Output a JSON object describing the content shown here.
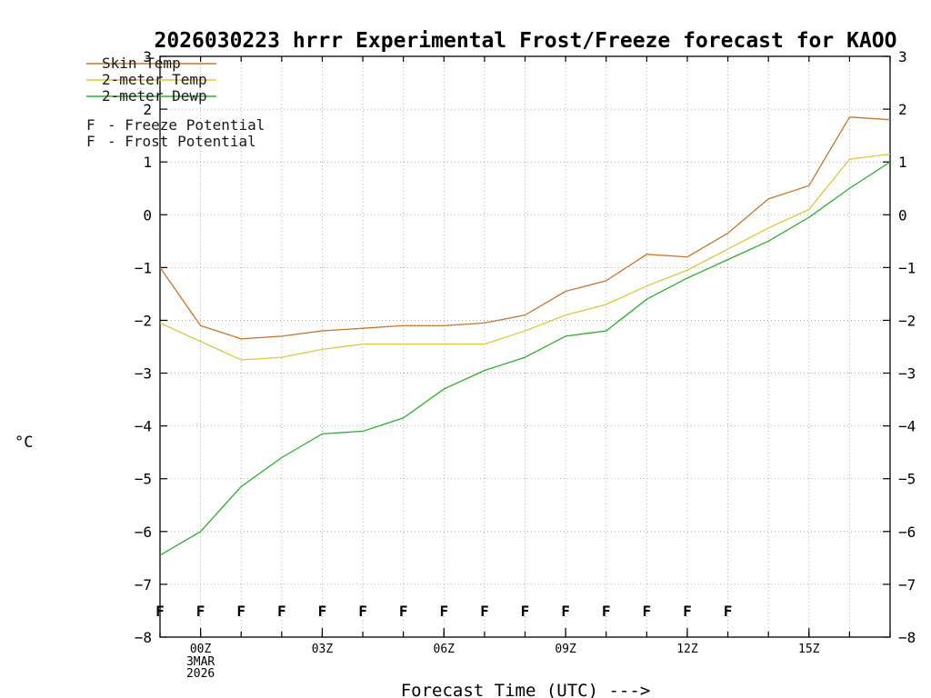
{
  "title": "2026030223 hrrr Experimental Frost/Freeze forecast for KAOO",
  "x_axis_label": "Forecast Time (UTC) --->",
  "y_axis_label": "°C",
  "legend": [
    {
      "id": "skin-temp",
      "label": "Skin Temp",
      "color": "#c8762d"
    },
    {
      "id": "2m-temp",
      "label": "2-meter Temp",
      "color": "#d8c83c"
    },
    {
      "id": "2m-dewp",
      "label": "2-meter Dewp",
      "color": "#2eb02e"
    }
  ],
  "potential_legend": [
    {
      "id": "freeze-potential",
      "marker": "F",
      "label": "- Freeze Potential",
      "color": "#d4009e"
    },
    {
      "id": "frost-potential",
      "marker": "F",
      "label": "- Frost Potential",
      "color": "#4444ff"
    }
  ],
  "chart_data": {
    "type": "line",
    "xlabel": "Forecast Time (UTC) --->",
    "ylabel": "°C",
    "xmin": -1,
    "xmax": 17,
    "ymin": -8,
    "ymax": 3,
    "grid": true,
    "x_hours": [
      -1,
      0,
      1,
      2,
      3,
      4,
      5,
      6,
      7,
      8,
      9,
      10,
      11,
      12,
      13,
      14,
      15,
      16,
      17
    ],
    "xticks": [
      {
        "hour": 0,
        "label": "00Z",
        "sub": [
          "3MAR",
          "2026"
        ]
      },
      {
        "hour": 3,
        "label": "03Z"
      },
      {
        "hour": 6,
        "label": "06Z"
      },
      {
        "hour": 9,
        "label": "09Z"
      },
      {
        "hour": 12,
        "label": "12Z"
      },
      {
        "hour": 15,
        "label": "15Z"
      }
    ],
    "yticks": [
      3,
      2,
      1,
      0,
      -1,
      -2,
      -3,
      -4,
      -5,
      -6,
      -7,
      -8
    ],
    "series": [
      {
        "id": "skin-temp",
        "name": "Skin Temp",
        "color": "#c8762d",
        "values": [
          -1.0,
          -2.1,
          -2.35,
          -2.3,
          -2.2,
          -2.15,
          -2.1,
          -2.1,
          -2.05,
          -1.9,
          -1.45,
          -1.25,
          -0.75,
          -0.8,
          -0.35,
          0.3,
          0.55,
          1.85,
          1.8
        ]
      },
      {
        "id": "2m-temp",
        "name": "2-meter Temp",
        "color": "#d8c83c",
        "values": [
          -2.05,
          -2.4,
          -2.75,
          -2.7,
          -2.55,
          -2.45,
          -2.45,
          -2.45,
          -2.45,
          -2.2,
          -1.9,
          -1.7,
          -1.35,
          -1.05,
          -0.65,
          -0.25,
          0.1,
          1.05,
          1.15
        ]
      },
      {
        "id": "2m-dewp",
        "name": "2-meter Dewp",
        "color": "#2eb02e",
        "values": [
          -6.45,
          -6.0,
          -5.15,
          -4.6,
          -4.15,
          -4.1,
          -3.85,
          -3.3,
          -2.95,
          -2.7,
          -2.3,
          -2.2,
          -1.6,
          -1.2,
          -0.85,
          -0.5,
          -0.05,
          0.5,
          1.0
        ]
      }
    ],
    "freeze_markers": {
      "symbol": "F",
      "color": "#d4009e",
      "value": -7.5,
      "hours": [
        -1,
        0,
        1,
        2,
        3,
        4,
        5,
        6,
        7,
        8,
        9,
        10,
        11,
        12,
        13
      ]
    }
  }
}
